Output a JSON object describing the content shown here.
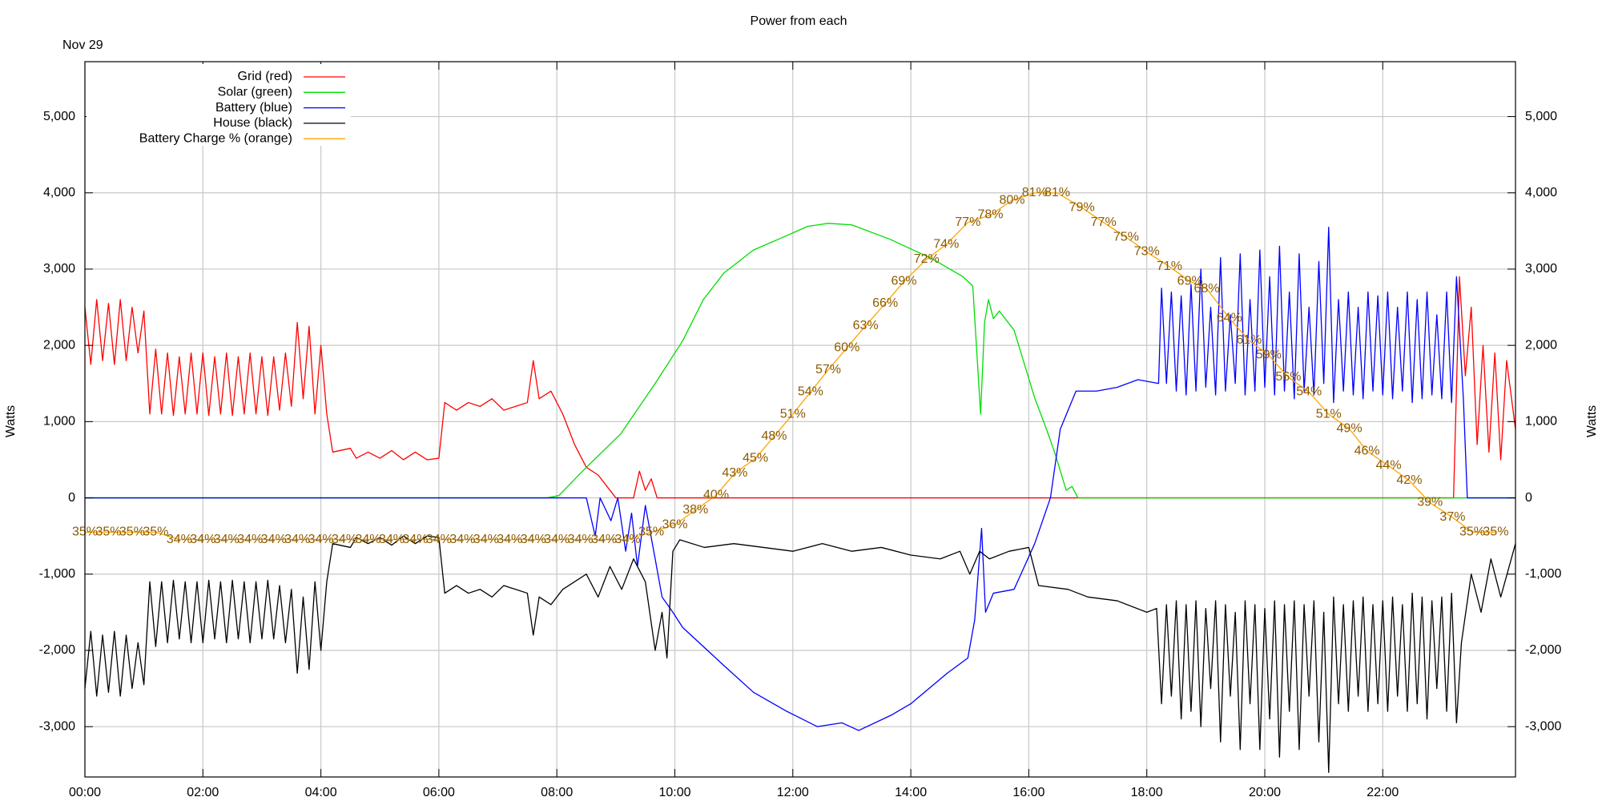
{
  "chart_data": {
    "type": "line",
    "title": "Power from each",
    "date_label": "Nov 29",
    "ylabel": "Watts",
    "y2label": "Watts",
    "xlim": [
      "00:00",
      "24:15"
    ],
    "xticks": [
      "00:00",
      "02:00",
      "04:00",
      "06:00",
      "08:00",
      "10:00",
      "12:00",
      "14:00",
      "16:00",
      "18:00",
      "20:00",
      "22:00"
    ],
    "ylim": [
      -3660,
      5720
    ],
    "yticks": [
      {
        "value": -3000,
        "label": "-3,000"
      },
      {
        "value": -2000,
        "label": "-2,000"
      },
      {
        "value": -1000,
        "label": "-1,000"
      },
      0,
      {
        "value": 1000,
        "label": "1,000"
      },
      {
        "value": 2000,
        "label": "2,000"
      },
      {
        "value": 3000,
        "label": "3,000"
      },
      {
        "value": 4000,
        "label": "4,000"
      },
      {
        "value": 5000,
        "label": "5,000"
      }
    ],
    "y2lim": [
      -3660,
      5720
    ],
    "y2ticks": [
      {
        "value": -3000,
        "label": "-3,000"
      },
      {
        "value": -2000,
        "label": "-2,000"
      },
      {
        "value": -1000,
        "label": "-1,000"
      },
      0,
      {
        "value": 1000,
        "label": "1,000"
      },
      {
        "value": 2000,
        "label": "2,000"
      },
      {
        "value": 3000,
        "label": "3,000"
      },
      {
        "value": 4000,
        "label": "4,000"
      },
      {
        "value": 5000,
        "label": "5,000"
      }
    ],
    "y3lim": [
      1.8,
      98.8
    ],
    "grid": true,
    "legend": "top-left",
    "label_color": "#8b5a00",
    "series": [
      {
        "name": "Grid (red)",
        "color": "#ff0000",
        "x": [
          "00:00",
          "00:06",
          "00:12",
          "00:18",
          "00:24",
          "00:30",
          "00:36",
          "00:42",
          "00:48",
          "00:54",
          "01:00",
          "01:06",
          "01:12",
          "01:18",
          "01:24",
          "01:30",
          "01:36",
          "01:42",
          "01:48",
          "01:54",
          "02:00",
          "02:06",
          "02:12",
          "02:18",
          "02:24",
          "02:30",
          "02:36",
          "02:42",
          "02:48",
          "02:54",
          "03:00",
          "03:06",
          "03:12",
          "03:18",
          "03:24",
          "03:30",
          "03:36",
          "03:42",
          "03:48",
          "03:54",
          "04:00",
          "04:06",
          "04:12",
          "04:30",
          "04:36",
          "04:48",
          "05:00",
          "05:12",
          "05:24",
          "05:36",
          "05:48",
          "06:00",
          "06:06",
          "06:18",
          "06:30",
          "06:42",
          "06:54",
          "07:06",
          "07:18",
          "07:30",
          "07:36",
          "07:42",
          "07:54",
          "08:06",
          "08:18",
          "08:30",
          "08:42",
          "08:54",
          "09:00",
          "09:18",
          "09:24",
          "09:30",
          "09:36",
          "09:42",
          "23:12",
          "23:18",
          "23:24",
          "23:30",
          "23:36",
          "23:42",
          "23:48",
          "23:54",
          "24:00",
          "24:06",
          "24:15"
        ],
        "values": [
          2500,
          1750,
          2600,
          1800,
          2550,
          1750,
          2600,
          1800,
          2500,
          1900,
          2450,
          1100,
          1950,
          1100,
          1900,
          1080,
          1850,
          1100,
          1900,
          1100,
          1900,
          1080,
          1850,
          1100,
          1900,
          1080,
          1850,
          1100,
          1900,
          1100,
          1850,
          1080,
          1850,
          1150,
          1900,
          1200,
          2300,
          1300,
          2250,
          1100,
          2000,
          1100,
          600,
          650,
          520,
          600,
          520,
          620,
          500,
          600,
          500,
          520,
          1250,
          1150,
          1250,
          1200,
          1300,
          1150,
          1200,
          1250,
          1800,
          1300,
          1400,
          1100,
          700,
          400,
          300,
          100,
          0,
          0,
          350,
          100,
          250,
          0,
          0,
          2900,
          1600,
          2500,
          700,
          2000,
          600,
          1900,
          500,
          1800,
          900
        ]
      },
      {
        "name": "Solar (green)",
        "color": "#00dd00",
        "x": [
          "00:00",
          "07:50",
          "08:02",
          "08:30",
          "09:05",
          "09:40",
          "10:08",
          "10:29",
          "10:50",
          "11:20",
          "11:54",
          "12:15",
          "12:36",
          "13:00",
          "13:39",
          "14:21",
          "14:53",
          "15:03",
          "15:11",
          "15:15",
          "15:19",
          "15:24",
          "15:30",
          "15:45",
          "16:06",
          "16:18",
          "16:27",
          "16:38",
          "16:44",
          "16:50",
          "24:15"
        ],
        "values": [
          0,
          0,
          30,
          400,
          840,
          1500,
          2060,
          2600,
          2950,
          3250,
          3440,
          3560,
          3600,
          3580,
          3390,
          3140,
          2900,
          2780,
          1100,
          2300,
          2600,
          2350,
          2450,
          2200,
          1310,
          900,
          570,
          100,
          150,
          0,
          0
        ]
      },
      {
        "name": "Battery (blue)",
        "color": "#0000ff",
        "x": [
          "00:00",
          "08:30",
          "08:39",
          "08:44",
          "08:55",
          "09:02",
          "09:10",
          "09:16",
          "09:22",
          "09:30",
          "09:40",
          "09:47",
          "09:58",
          "10:08",
          "10:50",
          "11:20",
          "11:54",
          "12:25",
          "12:50",
          "13:07",
          "13:40",
          "14:00",
          "14:37",
          "14:58",
          "15:05",
          "15:12",
          "15:16",
          "15:24",
          "15:45",
          "16:06",
          "16:22",
          "16:32",
          "16:48",
          "17:09",
          "17:30",
          "17:51",
          "18:12",
          "18:15",
          "18:20",
          "18:25",
          "18:30",
          "18:35",
          "18:40",
          "18:45",
          "18:50",
          "18:55",
          "19:00",
          "19:05",
          "19:10",
          "19:15",
          "19:20",
          "19:25",
          "19:30",
          "19:35",
          "19:40",
          "19:45",
          "19:50",
          "19:55",
          "20:00",
          "20:05",
          "20:10",
          "20:15",
          "20:20",
          "20:25",
          "20:30",
          "20:35",
          "20:40",
          "20:45",
          "20:50",
          "20:55",
          "21:00",
          "21:05",
          "21:10",
          "21:15",
          "21:20",
          "21:25",
          "21:30",
          "21:35",
          "21:40",
          "21:45",
          "21:50",
          "21:55",
          "22:00",
          "22:05",
          "22:10",
          "22:15",
          "22:20",
          "22:25",
          "22:30",
          "22:35",
          "22:40",
          "22:45",
          "22:50",
          "22:55",
          "23:00",
          "23:05",
          "23:10",
          "23:15",
          "23:22",
          "23:26",
          "24:15"
        ],
        "values": [
          0,
          0,
          -500,
          0,
          -300,
          0,
          -700,
          -200,
          -900,
          -100,
          -800,
          -1300,
          -1500,
          -1700,
          -2200,
          -2550,
          -2800,
          -3000,
          -2950,
          -3050,
          -2850,
          -2700,
          -2300,
          -2100,
          -1600,
          -400,
          -1500,
          -1250,
          -1200,
          -600,
          0,
          900,
          1400,
          1400,
          1450,
          1550,
          1500,
          2750,
          1500,
          2700,
          1400,
          2650,
          1350,
          2800,
          1400,
          3000,
          1450,
          2500,
          1350,
          3150,
          1400,
          2400,
          1500,
          3200,
          1350,
          2600,
          1400,
          3250,
          1450,
          2900,
          1350,
          3300,
          1400,
          2700,
          1300,
          3200,
          1400,
          2500,
          1350,
          3100,
          1500,
          3550,
          1250,
          2600,
          1400,
          2700,
          1350,
          2500,
          1300,
          2700,
          1400,
          2650,
          1350,
          2700,
          1300,
          2500,
          1400,
          2700,
          1250,
          2600,
          1300,
          2700,
          1350,
          2400,
          1300,
          2700,
          1250,
          2900,
          1300,
          0,
          0
        ]
      },
      {
        "name": "House (black)",
        "color": "#000000",
        "x": [
          "00:00",
          "00:06",
          "00:12",
          "00:18",
          "00:24",
          "00:30",
          "00:36",
          "00:42",
          "00:48",
          "00:54",
          "01:00",
          "01:06",
          "01:12",
          "01:18",
          "01:24",
          "01:30",
          "01:36",
          "01:42",
          "01:48",
          "01:54",
          "02:00",
          "02:06",
          "02:12",
          "02:18",
          "02:24",
          "02:30",
          "02:36",
          "02:42",
          "02:48",
          "02:54",
          "03:00",
          "03:06",
          "03:12",
          "03:18",
          "03:24",
          "03:30",
          "03:36",
          "03:42",
          "03:48",
          "03:54",
          "04:00",
          "04:06",
          "04:12",
          "04:30",
          "04:36",
          "04:48",
          "05:00",
          "05:12",
          "05:24",
          "05:36",
          "05:48",
          "06:00",
          "06:06",
          "06:18",
          "06:30",
          "06:42",
          "06:54",
          "07:06",
          "07:18",
          "07:30",
          "07:36",
          "07:42",
          "07:54",
          "08:06",
          "08:18",
          "08:30",
          "08:42",
          "08:54",
          "09:06",
          "09:18",
          "09:30",
          "09:40",
          "09:47",
          "09:52",
          "09:58",
          "10:05",
          "10:30",
          "11:00",
          "11:30",
          "12:00",
          "12:30",
          "13:00",
          "13:30",
          "14:00",
          "14:30",
          "14:50",
          "15:00",
          "15:10",
          "15:20",
          "15:40",
          "16:00",
          "16:10",
          "16:40",
          "17:00",
          "17:30",
          "18:00",
          "18:10",
          "18:15",
          "18:20",
          "18:25",
          "18:30",
          "18:35",
          "18:40",
          "18:45",
          "18:50",
          "18:55",
          "19:00",
          "19:05",
          "19:10",
          "19:15",
          "19:20",
          "19:25",
          "19:30",
          "19:35",
          "19:40",
          "19:45",
          "19:50",
          "19:55",
          "20:00",
          "20:05",
          "20:10",
          "20:15",
          "20:20",
          "20:25",
          "20:30",
          "20:35",
          "20:40",
          "20:45",
          "20:50",
          "20:55",
          "21:00",
          "21:05",
          "21:10",
          "21:15",
          "21:20",
          "21:25",
          "21:30",
          "21:35",
          "21:40",
          "21:45",
          "21:50",
          "21:55",
          "22:00",
          "22:05",
          "22:10",
          "22:15",
          "22:20",
          "22:25",
          "22:30",
          "22:35",
          "22:40",
          "22:45",
          "22:50",
          "22:55",
          "23:00",
          "23:05",
          "23:10",
          "23:15",
          "23:20",
          "23:30",
          "23:40",
          "23:50",
          "24:00",
          "24:15"
        ],
        "values": [
          -2500,
          -1750,
          -2600,
          -1800,
          -2550,
          -1750,
          -2600,
          -1800,
          -2500,
          -1900,
          -2450,
          -1100,
          -1950,
          -1100,
          -1900,
          -1080,
          -1850,
          -1100,
          -1900,
          -1100,
          -1900,
          -1080,
          -1850,
          -1100,
          -1900,
          -1080,
          -1850,
          -1100,
          -1900,
          -1100,
          -1850,
          -1080,
          -1850,
          -1150,
          -1900,
          -1200,
          -2300,
          -1300,
          -2250,
          -1100,
          -2000,
          -1100,
          -600,
          -650,
          -520,
          -600,
          -520,
          -620,
          -500,
          -600,
          -500,
          -520,
          -1250,
          -1150,
          -1250,
          -1200,
          -1300,
          -1150,
          -1200,
          -1250,
          -1800,
          -1300,
          -1400,
          -1200,
          -1100,
          -1000,
          -1300,
          -900,
          -1200,
          -800,
          -1100,
          -2000,
          -1500,
          -2100,
          -700,
          -550,
          -650,
          -600,
          -650,
          -700,
          -600,
          -700,
          -650,
          -750,
          -800,
          -700,
          -1000,
          -700,
          -800,
          -700,
          -650,
          -1150,
          -1200,
          -1300,
          -1350,
          -1500,
          -1450,
          -2700,
          -1400,
          -2600,
          -1350,
          -2900,
          -1400,
          -2800,
          -1350,
          -3000,
          -1450,
          -2500,
          -1350,
          -3200,
          -1400,
          -2600,
          -1500,
          -3300,
          -1350,
          -2700,
          -1400,
          -3300,
          -1450,
          -2900,
          -1350,
          -3400,
          -1400,
          -2800,
          -1350,
          -3300,
          -1400,
          -2600,
          -1350,
          -3200,
          -1500,
          -3600,
          -1300,
          -2700,
          -1400,
          -2800,
          -1350,
          -2600,
          -1300,
          -2800,
          -1400,
          -2700,
          -1350,
          -2800,
          -1300,
          -2600,
          -1400,
          -2800,
          -1250,
          -2700,
          -1300,
          -2900,
          -1350,
          -2500,
          -1300,
          -2800,
          -1250,
          -2950,
          -1900,
          -1000,
          -1500,
          -800,
          -1300,
          -600
        ]
      },
      {
        "name": "Battery Charge % (orange)",
        "color": "#ffa500",
        "axis": "y3",
        "x": [
          "00:00",
          "00:24",
          "00:48",
          "01:12",
          "01:36",
          "02:00",
          "02:24",
          "02:48",
          "03:12",
          "03:36",
          "04:00",
          "04:24",
          "04:48",
          "05:12",
          "05:36",
          "06:00",
          "06:24",
          "06:48",
          "07:12",
          "07:36",
          "08:00",
          "08:24",
          "08:48",
          "09:12",
          "09:36",
          "10:00",
          "10:21",
          "10:42",
          "11:01",
          "11:22",
          "11:41",
          "12:00",
          "12:18",
          "12:36",
          "12:55",
          "13:14",
          "13:34",
          "13:53",
          "14:16",
          "14:36",
          "14:58",
          "15:21",
          "15:43",
          "16:06",
          "16:29",
          "16:54",
          "17:16",
          "17:39",
          "18:00",
          "18:23",
          "18:44",
          "19:01",
          "19:24",
          "19:44",
          "20:04",
          "20:24",
          "20:45",
          "21:05",
          "21:26",
          "21:44",
          "22:06",
          "22:27",
          "22:48",
          "23:11",
          "23:31",
          "23:55"
        ],
        "values": [
          35,
          35,
          35,
          35,
          34,
          34,
          34,
          34,
          34,
          34,
          34,
          34,
          34,
          34,
          34,
          34,
          34,
          34,
          34,
          34,
          34,
          34,
          34,
          34,
          35,
          36,
          38,
          40,
          43,
          45,
          48,
          51,
          54,
          57,
          60,
          63,
          66,
          69,
          72,
          74,
          77,
          78,
          80,
          81,
          81,
          79,
          77,
          75,
          73,
          71,
          69,
          68,
          64,
          61,
          59,
          56,
          54,
          51,
          49,
          46,
          44,
          42,
          39,
          37,
          35,
          35
        ],
        "value_labels": [
          "35%",
          "35%",
          "35%",
          "35%",
          "34%",
          "34%",
          "34%",
          "34%",
          "34%",
          "34%",
          "34%",
          "34%",
          "34%",
          "34%",
          "34%",
          "34%",
          "34%",
          "34%",
          "34%",
          "34%",
          "34%",
          "34%",
          "34%",
          "34%",
          "35%",
          "36%",
          "38%",
          "40%",
          "43%",
          "45%",
          "48%",
          "51%",
          "54%",
          "57%",
          "60%",
          "63%",
          "66%",
          "69%",
          "72%",
          "74%",
          "77%",
          "78%",
          "80%",
          "81%",
          "81%",
          "79%",
          "77%",
          "75%",
          "73%",
          "71%",
          "69%",
          "68%",
          "64%",
          "61%",
          "59%",
          "56%",
          "54%",
          "51%",
          "49%",
          "46%",
          "44%",
          "42%",
          "39%",
          "37%",
          "35%",
          "35%"
        ]
      }
    ]
  }
}
